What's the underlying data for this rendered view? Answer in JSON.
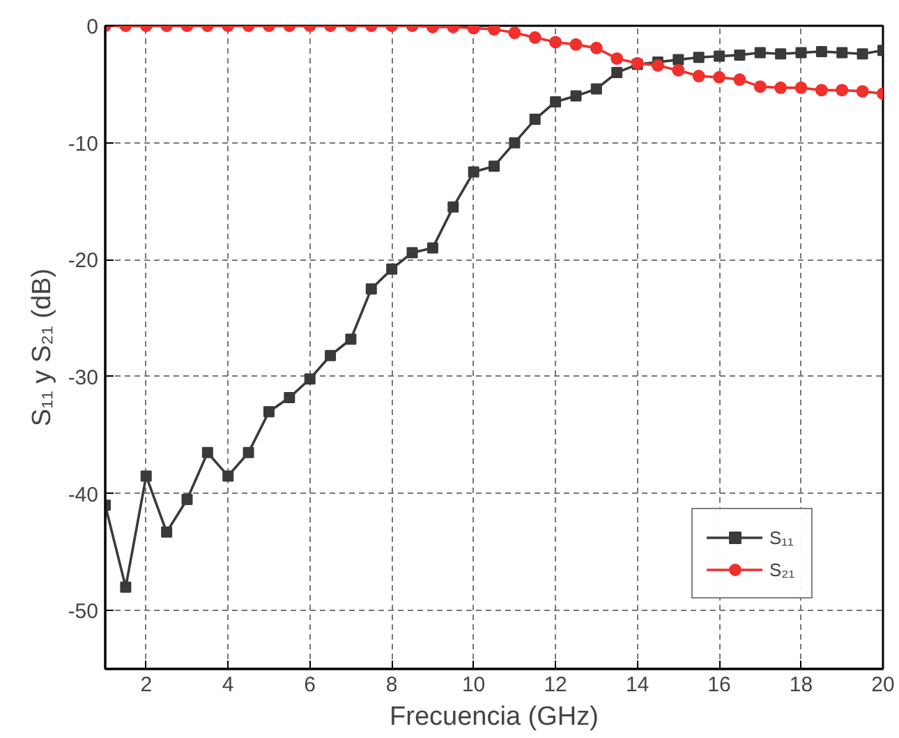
{
  "chart_data": {
    "type": "line",
    "xlabel": "Frecuencia (GHz)",
    "ylabel": "S₁₁ y S₂₁ (dB)",
    "x": [
      1,
      1.5,
      2,
      2.5,
      3,
      3.5,
      4,
      4.5,
      5,
      5.5,
      6,
      6.5,
      7,
      7.5,
      8,
      8.5,
      9,
      9.5,
      10,
      10.5,
      11,
      11.5,
      12,
      12.5,
      13,
      13.5,
      14,
      14.5,
      15,
      15.5,
      16,
      16.5,
      17,
      17.5,
      18,
      18.5,
      19,
      19.5,
      20
    ],
    "series": [
      {
        "name": "S₁₁",
        "color": "#3a3a3a",
        "marker": "square",
        "values": [
          -41,
          -48,
          -38.5,
          -43.3,
          -40.5,
          -36.5,
          -38.5,
          -36.5,
          -33,
          -31.8,
          -30.2,
          -28.2,
          -26.8,
          -22.5,
          -20.8,
          -19.4,
          -19,
          -15.5,
          -12.5,
          -12,
          -10,
          -8,
          -6.5,
          -6,
          -5.4,
          -4,
          -3.3,
          -3.1,
          -2.9,
          -2.7,
          -2.6,
          -2.5,
          -2.3,
          -2.4,
          -2.3,
          -2.2,
          -2.3,
          -2.4,
          -2.1
        ]
      },
      {
        "name": "S₂₁",
        "color": "#f0302c",
        "marker": "circle",
        "values": [
          0,
          0,
          0,
          0,
          0,
          0,
          0,
          0,
          0,
          0,
          0,
          0,
          0,
          0,
          0,
          0,
          -0.1,
          -0.1,
          -0.2,
          -0.3,
          -0.6,
          -1.0,
          -1.4,
          -1.6,
          -1.9,
          -2.8,
          -3.2,
          -3.4,
          -3.8,
          -4.3,
          -4.4,
          -4.6,
          -5.2,
          -5.3,
          -5.3,
          -5.5,
          -5.5,
          -5.6,
          -5.8
        ]
      }
    ],
    "xlim": [
      1,
      20
    ],
    "xticks": [
      2,
      4,
      6,
      8,
      10,
      12,
      14,
      16,
      18,
      20
    ],
    "ylim": [
      -55,
      0
    ],
    "yticks": [
      -50,
      -40,
      -30,
      -20,
      -10,
      0
    ],
    "grid": true,
    "legend": "bottom right",
    "line_style": "solid"
  }
}
